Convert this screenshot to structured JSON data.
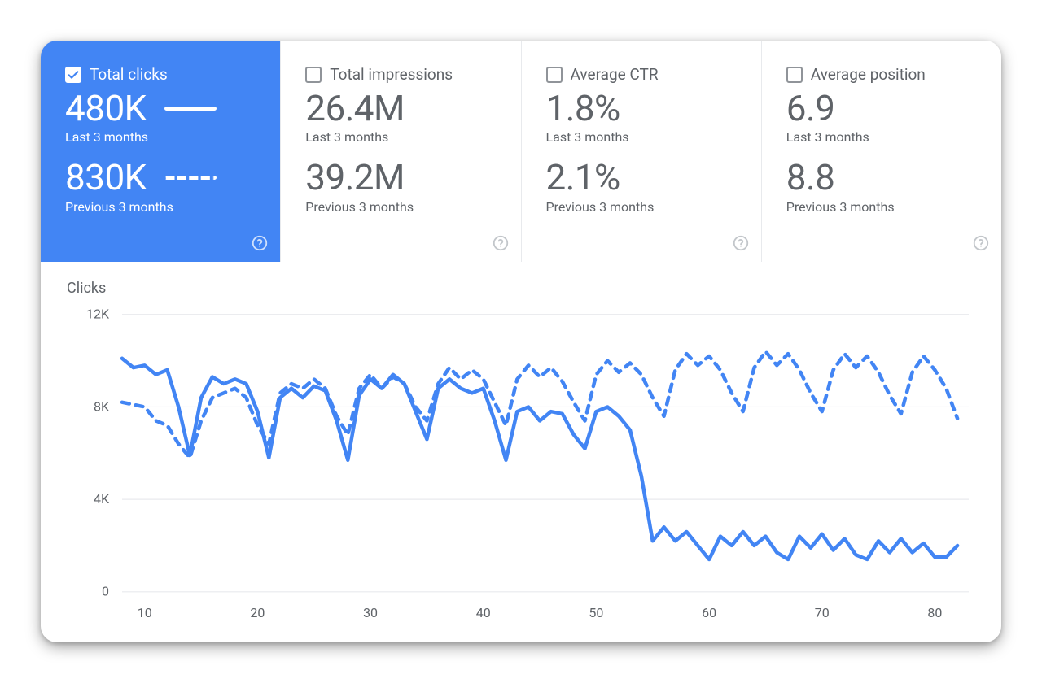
{
  "metrics": [
    {
      "id": "total-clicks",
      "label": "Total clicks",
      "checked": true,
      "current_value": "480K",
      "current_label": "Last 3 months",
      "previous_value": "830K",
      "previous_label": "Previous 3 months",
      "show_legend_lines": true
    },
    {
      "id": "total-impressions",
      "label": "Total impressions",
      "checked": false,
      "current_value": "26.4M",
      "current_label": "Last 3 months",
      "previous_value": "39.2M",
      "previous_label": "Previous 3 months",
      "show_legend_lines": false
    },
    {
      "id": "average-ctr",
      "label": "Average CTR",
      "checked": false,
      "current_value": "1.8%",
      "current_label": "Last 3 months",
      "previous_value": "2.1%",
      "previous_label": "Previous 3 months",
      "show_legend_lines": false
    },
    {
      "id": "average-position",
      "label": "Average position",
      "checked": false,
      "current_value": "6.9",
      "current_label": "Last 3 months",
      "previous_value": "8.8",
      "previous_label": "Previous 3 months",
      "show_legend_lines": false
    }
  ],
  "chart": {
    "type": "line",
    "title": "Clicks",
    "background_color": "#ffffff",
    "grid_color": "#e8eaed",
    "axis_text_color": "#5f6368",
    "axis_fontsize": 16,
    "x": {
      "min": 8,
      "max": 83,
      "ticks": [
        10,
        20,
        30,
        40,
        50,
        60,
        70,
        80
      ]
    },
    "y": {
      "min": 0,
      "max": 12000,
      "ticks": [
        0,
        4000,
        8000,
        12000
      ],
      "tick_labels": [
        "0",
        "4K",
        "8K",
        "12K"
      ]
    },
    "series": [
      {
        "name": "Last 3 months",
        "color": "#4285f4",
        "stroke_width": 4.5,
        "dash": null,
        "points": [
          [
            8,
            10100
          ],
          [
            9,
            9700
          ],
          [
            10,
            9800
          ],
          [
            11,
            9400
          ],
          [
            12,
            9600
          ],
          [
            13,
            8000
          ],
          [
            14,
            5900
          ],
          [
            15,
            8400
          ],
          [
            16,
            9300
          ],
          [
            17,
            9000
          ],
          [
            18,
            9200
          ],
          [
            19,
            9000
          ],
          [
            20,
            7800
          ],
          [
            21,
            5800
          ],
          [
            22,
            8400
          ],
          [
            23,
            8800
          ],
          [
            24,
            8400
          ],
          [
            25,
            8900
          ],
          [
            26,
            8700
          ],
          [
            27,
            7400
          ],
          [
            28,
            5700
          ],
          [
            29,
            8500
          ],
          [
            30,
            9200
          ],
          [
            31,
            8800
          ],
          [
            32,
            9400
          ],
          [
            33,
            9000
          ],
          [
            34,
            7800
          ],
          [
            35,
            6600
          ],
          [
            36,
            8800
          ],
          [
            37,
            9200
          ],
          [
            38,
            8800
          ],
          [
            39,
            8600
          ],
          [
            40,
            8800
          ],
          [
            41,
            7400
          ],
          [
            42,
            5700
          ],
          [
            43,
            7800
          ],
          [
            44,
            8000
          ],
          [
            45,
            7400
          ],
          [
            46,
            7800
          ],
          [
            47,
            7700
          ],
          [
            48,
            6800
          ],
          [
            49,
            6200
          ],
          [
            50,
            7800
          ],
          [
            51,
            8000
          ],
          [
            52,
            7600
          ],
          [
            53,
            7000
          ],
          [
            54,
            5000
          ],
          [
            55,
            2200
          ],
          [
            56,
            2800
          ],
          [
            57,
            2200
          ],
          [
            58,
            2600
          ],
          [
            59,
            2000
          ],
          [
            60,
            1400
          ],
          [
            61,
            2400
          ],
          [
            62,
            2000
          ],
          [
            63,
            2600
          ],
          [
            64,
            2000
          ],
          [
            65,
            2400
          ],
          [
            66,
            1700
          ],
          [
            67,
            1400
          ],
          [
            68,
            2400
          ],
          [
            69,
            1900
          ],
          [
            70,
            2500
          ],
          [
            71,
            1800
          ],
          [
            72,
            2300
          ],
          [
            73,
            1600
          ],
          [
            74,
            1400
          ],
          [
            75,
            2200
          ],
          [
            76,
            1700
          ],
          [
            77,
            2300
          ],
          [
            78,
            1700
          ],
          [
            79,
            2100
          ],
          [
            80,
            1500
          ],
          [
            81,
            1500
          ],
          [
            82,
            2000
          ]
        ]
      },
      {
        "name": "Previous 3 months",
        "color": "#4285f4",
        "stroke_width": 4.5,
        "dash": "9 8",
        "points": [
          [
            8,
            8200
          ],
          [
            9,
            8100
          ],
          [
            10,
            8000
          ],
          [
            11,
            7400
          ],
          [
            12,
            7200
          ],
          [
            13,
            6400
          ],
          [
            14,
            5800
          ],
          [
            15,
            7400
          ],
          [
            16,
            8400
          ],
          [
            17,
            8600
          ],
          [
            18,
            8800
          ],
          [
            19,
            8400
          ],
          [
            20,
            7200
          ],
          [
            21,
            6400
          ],
          [
            22,
            8600
          ],
          [
            23,
            9000
          ],
          [
            24,
            8800
          ],
          [
            25,
            9200
          ],
          [
            26,
            8800
          ],
          [
            27,
            7600
          ],
          [
            28,
            6800
          ],
          [
            29,
            8800
          ],
          [
            30,
            9400
          ],
          [
            31,
            8800
          ],
          [
            32,
            9300
          ],
          [
            33,
            9000
          ],
          [
            34,
            8000
          ],
          [
            35,
            7400
          ],
          [
            36,
            9000
          ],
          [
            37,
            9700
          ],
          [
            38,
            9200
          ],
          [
            39,
            9600
          ],
          [
            40,
            9200
          ],
          [
            41,
            8200
          ],
          [
            42,
            7200
          ],
          [
            43,
            9200
          ],
          [
            44,
            9800
          ],
          [
            45,
            9300
          ],
          [
            46,
            9700
          ],
          [
            47,
            9100
          ],
          [
            48,
            8200
          ],
          [
            49,
            7400
          ],
          [
            50,
            9400
          ],
          [
            51,
            10000
          ],
          [
            52,
            9500
          ],
          [
            53,
            9900
          ],
          [
            54,
            9400
          ],
          [
            55,
            8400
          ],
          [
            56,
            7600
          ],
          [
            57,
            9600
          ],
          [
            58,
            10300
          ],
          [
            59,
            9800
          ],
          [
            60,
            10200
          ],
          [
            61,
            9600
          ],
          [
            62,
            8600
          ],
          [
            63,
            7800
          ],
          [
            64,
            9700
          ],
          [
            65,
            10400
          ],
          [
            66,
            9800
          ],
          [
            67,
            10300
          ],
          [
            68,
            9600
          ],
          [
            69,
            8600
          ],
          [
            70,
            7800
          ],
          [
            71,
            9600
          ],
          [
            72,
            10300
          ],
          [
            73,
            9700
          ],
          [
            74,
            10200
          ],
          [
            75,
            9500
          ],
          [
            76,
            8500
          ],
          [
            77,
            7700
          ],
          [
            78,
            9500
          ],
          [
            79,
            10200
          ],
          [
            80,
            9600
          ],
          [
            81,
            8800
          ],
          [
            82,
            7500
          ]
        ]
      }
    ]
  },
  "colors": {
    "accent": "#4285f4",
    "text_muted": "#5f6368",
    "border": "#e8eaed",
    "icon_muted": "#bdc1c6"
  }
}
